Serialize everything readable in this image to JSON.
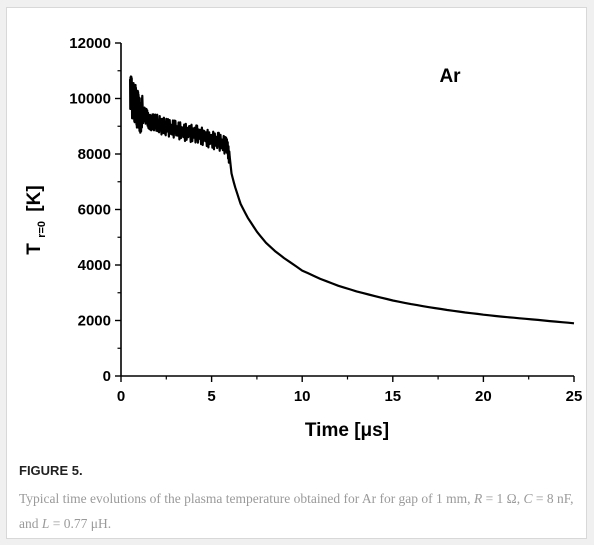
{
  "figure_label": "FIGURE 5.",
  "caption": {
    "part1": "Typical time evolutions of the plasma temperature obtained for Ar for gap of 1 mm, ",
    "R_var": "R",
    "R_value": " = 1 Ω, ",
    "C_var": "C",
    "C_value": " = 8 nF, and ",
    "L_var": "L",
    "L_value": " = 0.77 μH."
  },
  "colors": {
    "line": "#000000",
    "caption": "#9a9a9a",
    "page_bg": "#f0f0f0"
  },
  "chart_data": {
    "type": "line",
    "annotation": "Ar",
    "xlabel": "Time [μs]",
    "ylabel_main": "T",
    "ylabel_sub": "r=0",
    "ylabel_unit": "[K]",
    "xlim": [
      0,
      25
    ],
    "ylim": [
      0,
      12000
    ],
    "xticks": [
      0,
      5,
      10,
      15,
      20,
      25
    ],
    "yticks": [
      0,
      2000,
      4000,
      6000,
      8000,
      10000,
      12000
    ],
    "grid": false,
    "series": [
      {
        "x": [
          0.5,
          0.6,
          0.7,
          0.8,
          0.9,
          1.0,
          1.2,
          1.4,
          1.6,
          1.8,
          2.0,
          2.3,
          2.6,
          3.0,
          3.4,
          3.8,
          4.2,
          4.6,
          5.0,
          5.4,
          5.8,
          6.0,
          6.1,
          6.3,
          6.6,
          7.0,
          7.5,
          8.0,
          8.5,
          9.0,
          10.0,
          11.0,
          12.0,
          13.0,
          14.0,
          15.0,
          16.0,
          17.0,
          18.0,
          19.0,
          20.0,
          21.0,
          22.0,
          23.0,
          24.0,
          25.0
        ],
        "y": [
          10300,
          10000,
          9900,
          9800,
          9600,
          9500,
          9400,
          9300,
          9200,
          9100,
          9100,
          9000,
          8950,
          8900,
          8800,
          8750,
          8700,
          8600,
          8500,
          8450,
          8300,
          7900,
          7300,
          6800,
          6200,
          5700,
          5200,
          4800,
          4500,
          4250,
          3800,
          3500,
          3250,
          3050,
          2880,
          2720,
          2590,
          2480,
          2380,
          2290,
          2210,
          2140,
          2080,
          2020,
          1960,
          1900
        ]
      }
    ]
  }
}
